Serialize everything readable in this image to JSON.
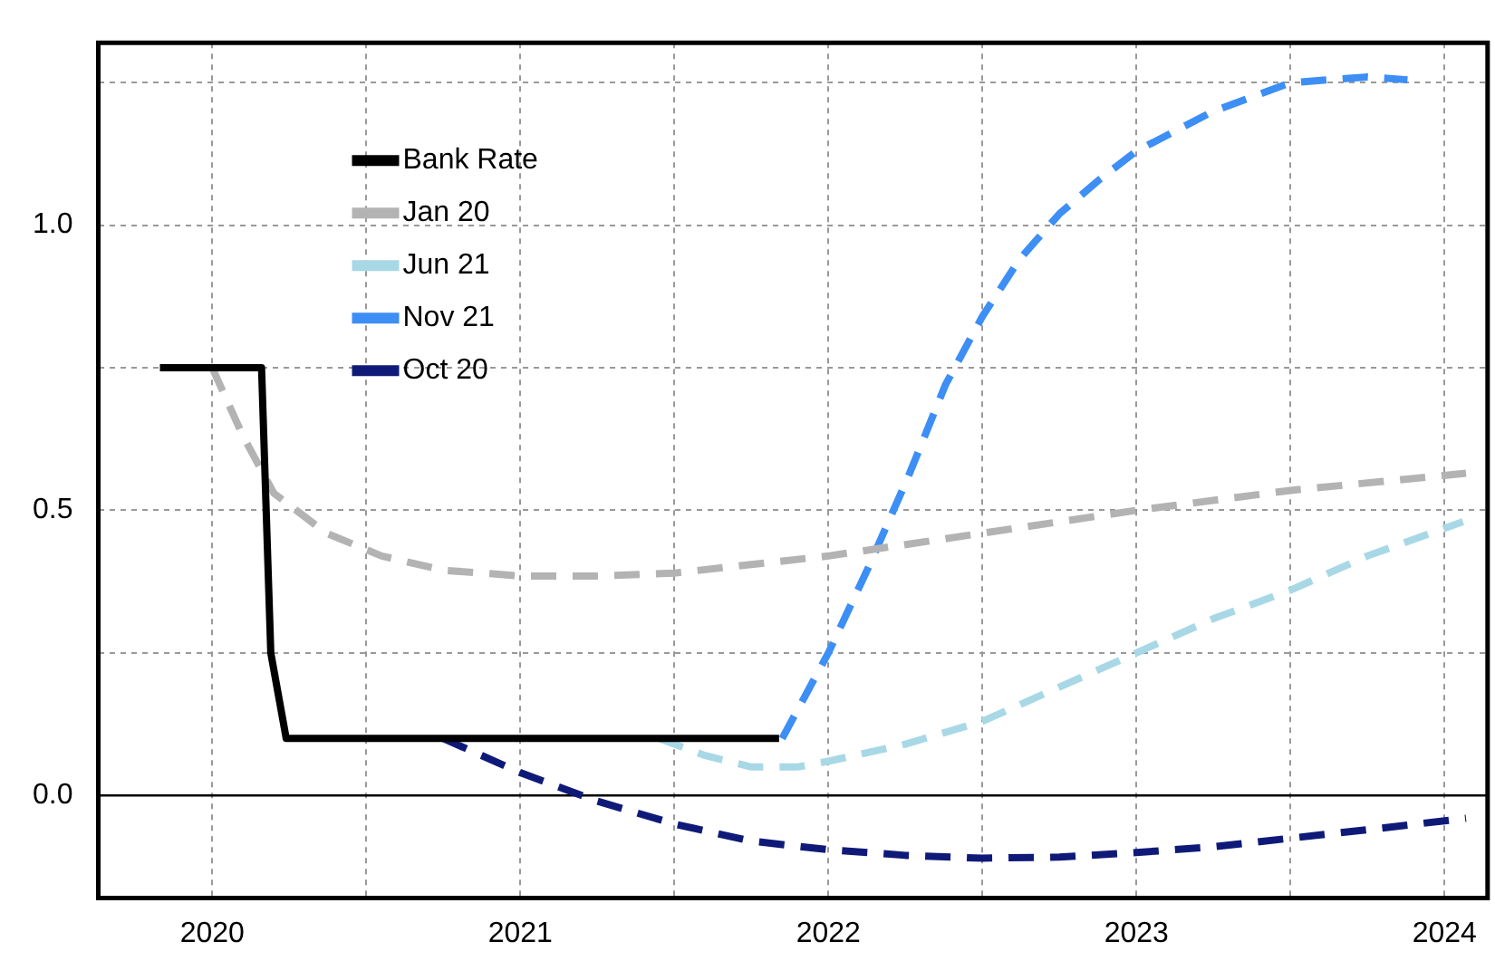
{
  "chart_data": {
    "type": "line",
    "xlim": [
      2019.63,
      2024.14
    ],
    "ylim": [
      -0.18,
      1.32
    ],
    "xticks": [
      2020,
      {
        "value": 2020.5,
        "label": null
      },
      2021,
      {
        "value": 2021.5,
        "label": null
      },
      2022,
      {
        "value": 2022.5,
        "label": null
      },
      2023,
      {
        "value": 2023.5,
        "label": null
      },
      2024
    ],
    "yticks": [
      {
        "value": 0,
        "label": "0.0"
      },
      {
        "value": 0.25,
        "label": null
      },
      0.5,
      {
        "value": 0.75,
        "label": null
      },
      {
        "value": 1,
        "label": "1.0"
      },
      {
        "value": 1.25,
        "label": null
      }
    ],
    "grid": true,
    "legend": "top left",
    "ref_lines": [
      {
        "axis": "y",
        "value": 0,
        "color": "#000000",
        "line_style": "solid"
      }
    ],
    "series": [
      {
        "name": "Bank Rate",
        "color": "#000000",
        "line_style": "solid",
        "x": [
          2019.83,
          2020.16,
          2020.19,
          2020.24,
          2021.84
        ],
        "values": [
          0.75,
          0.75,
          0.25,
          0.1,
          0.1
        ]
      },
      {
        "name": "Jan 20",
        "color": "#b3b3b3",
        "line_style": "dashed",
        "x": [
          2020.0,
          2020.1,
          2020.2,
          2020.37,
          2020.55,
          2020.75,
          2021.0,
          2021.25,
          2021.5,
          2021.75,
          2022.0,
          2022.5,
          2023.0,
          2023.5,
          2024.07
        ],
        "values": [
          0.75,
          0.63,
          0.53,
          0.46,
          0.42,
          0.395,
          0.385,
          0.385,
          0.39,
          0.405,
          0.42,
          0.46,
          0.5,
          0.535,
          0.565
        ]
      },
      {
        "name": "Jun 21",
        "color": "#a8d8e6",
        "line_style": "dashed",
        "x": [
          2021.45,
          2021.6,
          2021.75,
          2021.9,
          2022.0,
          2022.25,
          2022.5,
          2022.75,
          2023.0,
          2023.25,
          2023.5,
          2023.75,
          2024.06
        ],
        "values": [
          0.1,
          0.07,
          0.05,
          0.05,
          0.06,
          0.09,
          0.13,
          0.19,
          0.25,
          0.31,
          0.36,
          0.42,
          0.48
        ]
      },
      {
        "name": "Nov 21",
        "color": "#3d8ef5",
        "line_style": "dashed",
        "x": [
          2021.85,
          2022.0,
          2022.13,
          2022.26,
          2022.38,
          2022.5,
          2022.62,
          2022.75,
          2022.88,
          2023.0,
          2023.25,
          2023.5,
          2023.75,
          2023.88
        ],
        "values": [
          0.1,
          0.25,
          0.4,
          0.56,
          0.72,
          0.84,
          0.94,
          1.02,
          1.08,
          1.13,
          1.2,
          1.25,
          1.26,
          1.255
        ]
      },
      {
        "name": "Oct 20",
        "color": "#0f1a78",
        "line_style": "dashed",
        "x": [
          2020.75,
          2021.0,
          2021.25,
          2021.5,
          2021.75,
          2022.0,
          2022.25,
          2022.5,
          2022.75,
          2023.0,
          2023.25,
          2023.5,
          2023.75,
          2024.07
        ],
        "values": [
          0.1,
          0.04,
          -0.01,
          -0.05,
          -0.08,
          -0.095,
          -0.105,
          -0.11,
          -0.108,
          -0.1,
          -0.09,
          -0.075,
          -0.06,
          -0.04
        ]
      }
    ]
  }
}
